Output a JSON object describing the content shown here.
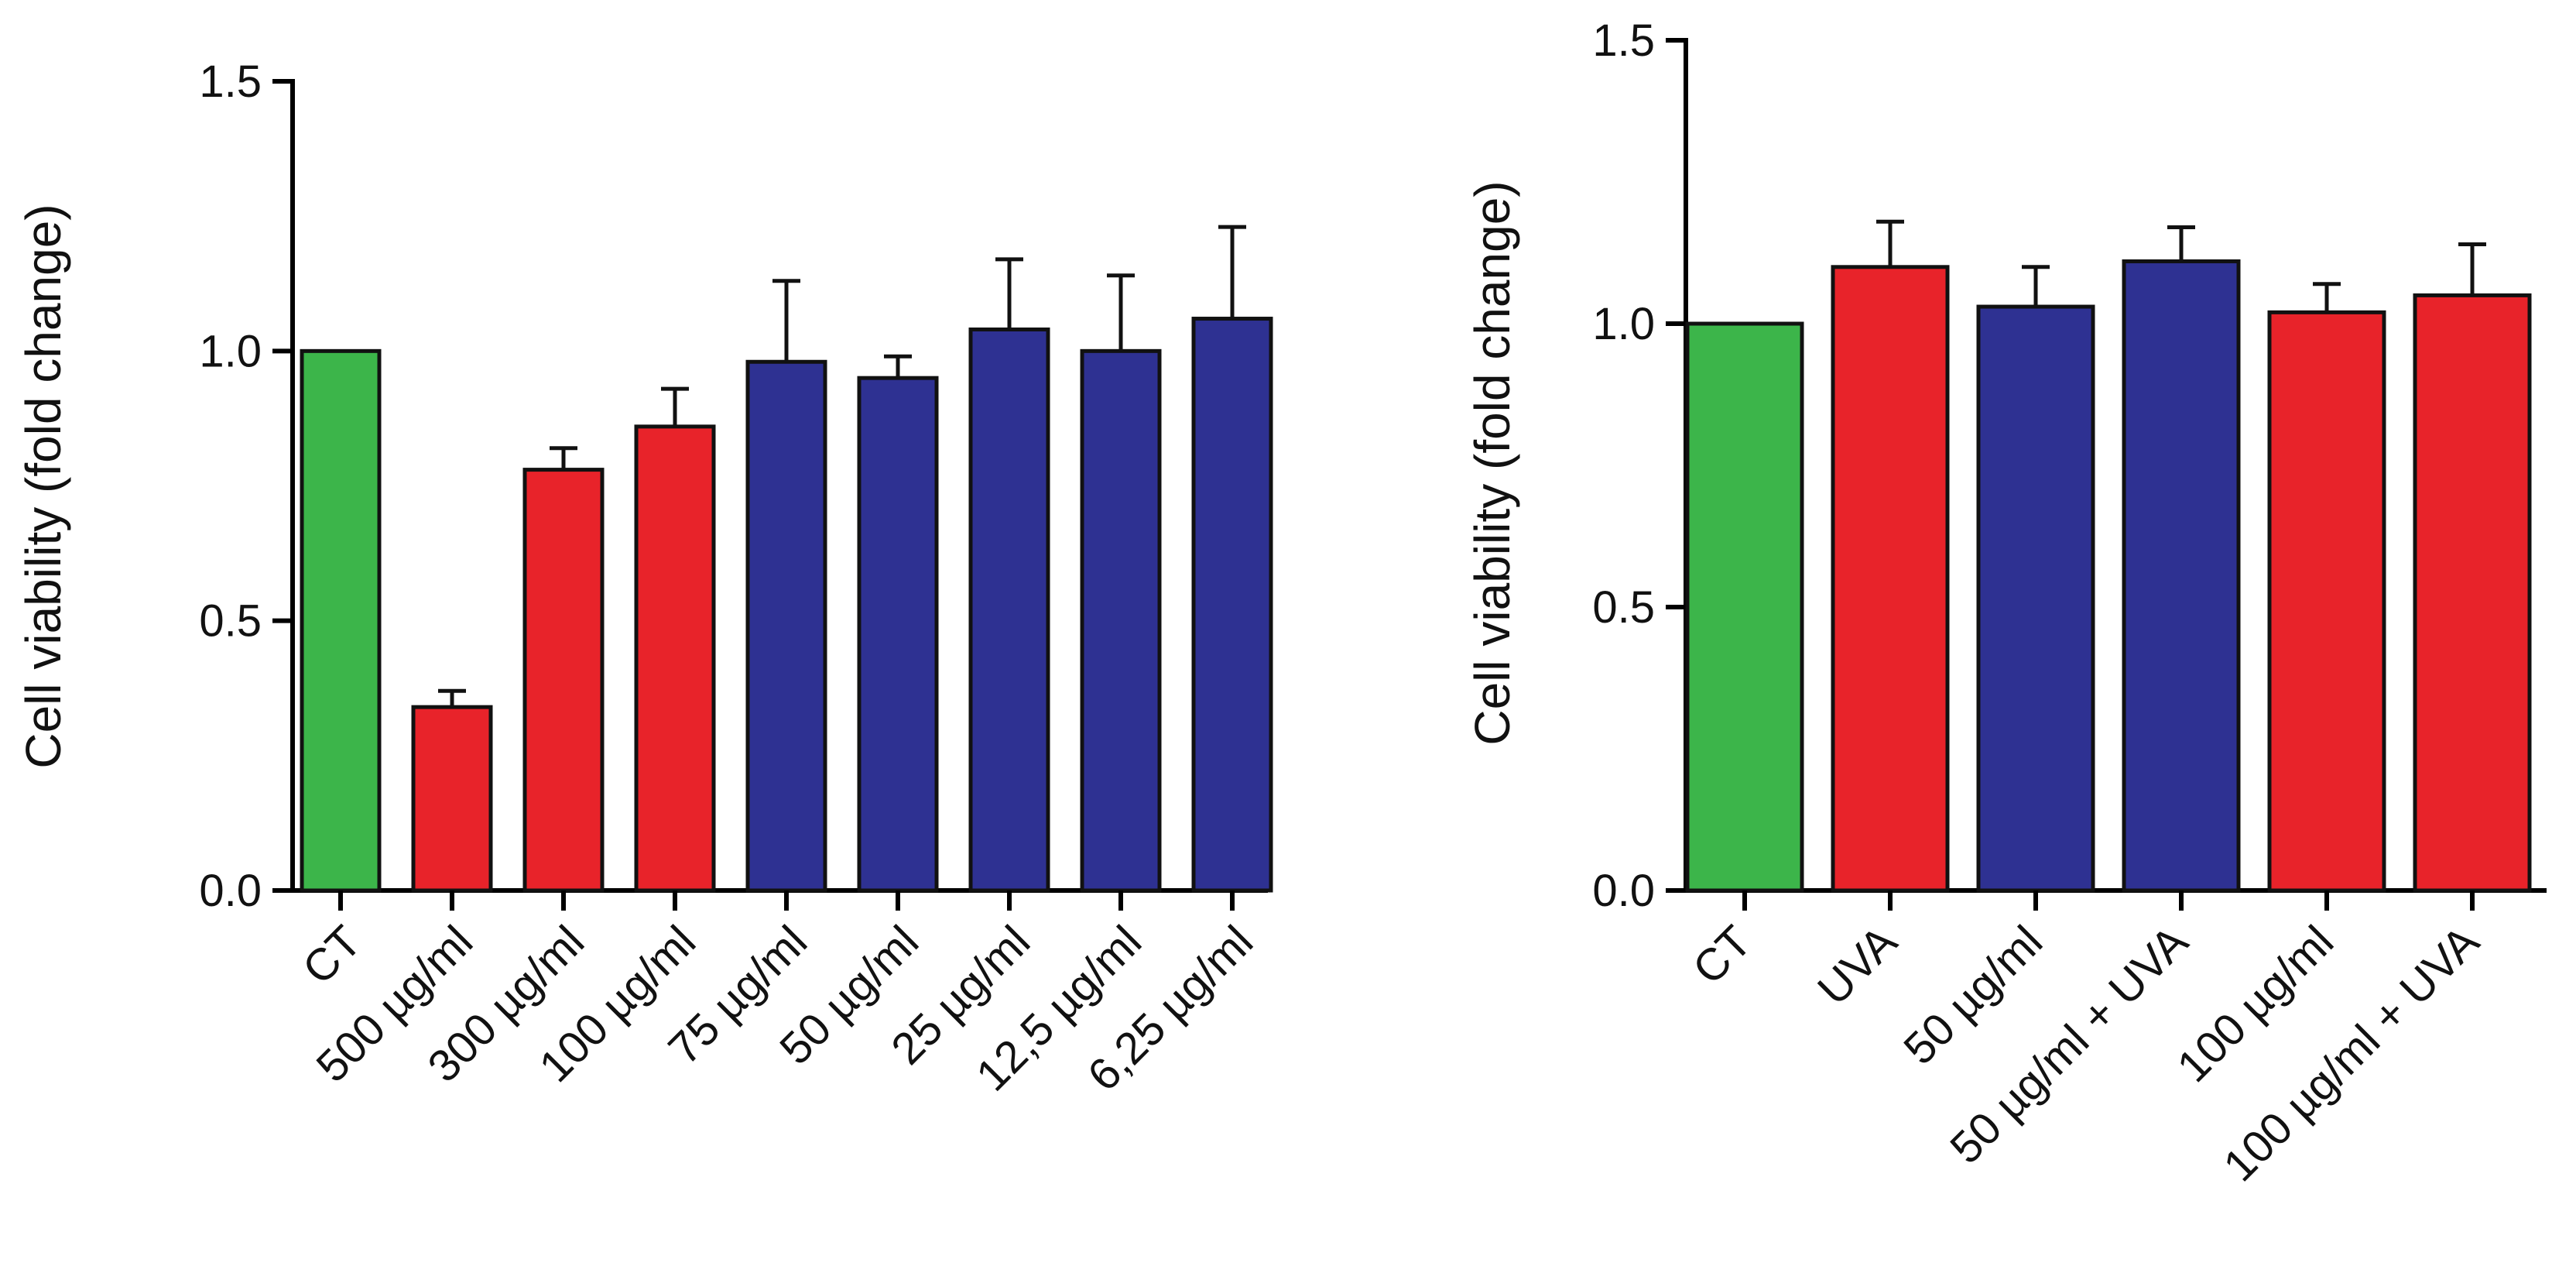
{
  "chart_data": [
    {
      "type": "bar",
      "ylabel": "Cell viability (fold change)",
      "ylim": [
        0,
        1.5
      ],
      "yticks": [
        "0.0",
        "0.5",
        "1.0",
        "1.5"
      ],
      "categories": [
        "CT",
        "500 µg/ml",
        "300 µg/ml",
        "100 µg/ml",
        "75 µg/ml",
        "50 µg/ml",
        "25 µg/ml",
        "12,5 µg/ml",
        "6,25 µg/ml"
      ],
      "values": [
        1.0,
        0.34,
        0.78,
        0.86,
        0.98,
        0.95,
        1.04,
        1.0,
        1.06
      ],
      "errors": [
        0.0,
        0.03,
        0.04,
        0.07,
        0.15,
        0.04,
        0.13,
        0.14,
        0.17
      ],
      "colors": [
        "#3cb54a",
        "#e8232a",
        "#e8232a",
        "#e8232a",
        "#2e3192",
        "#2e3192",
        "#2e3192",
        "#2e3192",
        "#2e3192"
      ]
    },
    {
      "type": "bar",
      "ylabel": "Cell viability (fold change)",
      "ylim": [
        0,
        1.5
      ],
      "yticks": [
        "0.0",
        "0.5",
        "1.0",
        "1.5"
      ],
      "categories": [
        "CT",
        "UVA",
        "50 µg/ml",
        "50 µg/ml + UVA",
        "100 µg/ml",
        "100 µg/ml + UVA"
      ],
      "values": [
        1.0,
        1.1,
        1.03,
        1.11,
        1.02,
        1.05
      ],
      "errors": [
        0.0,
        0.08,
        0.07,
        0.06,
        0.05,
        0.09
      ],
      "colors": [
        "#3cb54a",
        "#e8232a",
        "#2e3192",
        "#2e3192",
        "#e8232a",
        "#e8232a"
      ]
    }
  ]
}
